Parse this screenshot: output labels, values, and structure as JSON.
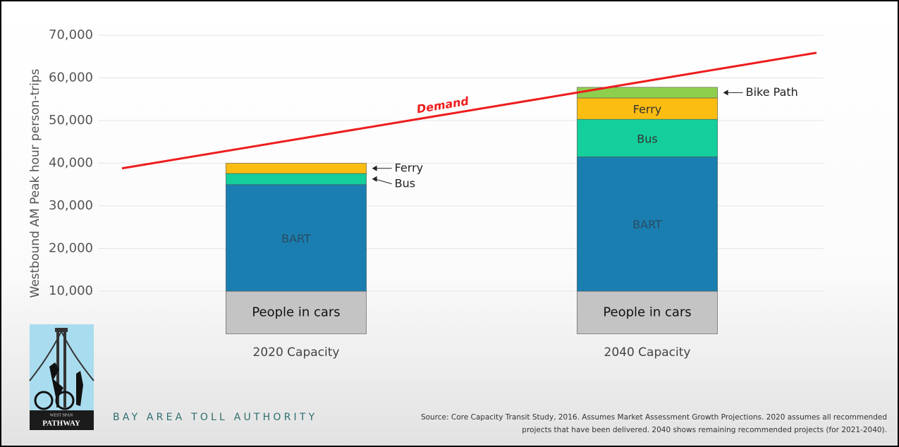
{
  "chart_data": {
    "type": "bar",
    "stacked": true,
    "y_label": "Westbound AM Peak hour person-trips",
    "categories": [
      "2020 Capacity",
      "2040 Capacity"
    ],
    "series": [
      {
        "name": "People in cars",
        "color": "#c4c4c4",
        "values": [
          10000,
          10000
        ]
      },
      {
        "name": "BART",
        "color": "#1a7fb0",
        "values": [
          25000,
          31500
        ]
      },
      {
        "name": "Bus",
        "color": "#14cf9b",
        "values": [
          2600,
          8800
        ]
      },
      {
        "name": "Ferry",
        "color": "#fbbd12",
        "values": [
          2400,
          5000
        ]
      },
      {
        "name": "Bike Path",
        "color": "#8fcf4e",
        "values": [
          null,
          2500
        ]
      }
    ],
    "line": {
      "name": "Demand",
      "color": "#ee1c1c",
      "values": [
        38800,
        65900
      ]
    },
    "ylim": [
      0,
      70000
    ],
    "yticks": [
      {
        "value": 10000,
        "label": "10,000"
      },
      {
        "value": 20000,
        "label": "20,000"
      },
      {
        "value": 30000,
        "label": "30,000"
      },
      {
        "value": 40000,
        "label": "40,000"
      },
      {
        "value": 50000,
        "label": "50,000"
      },
      {
        "value": 60000,
        "label": "60,000"
      },
      {
        "value": 70000,
        "label": "70,000"
      }
    ],
    "grid": true
  },
  "footer": {
    "organization": "BAY AREA TOLL AUTHORITY",
    "source": [
      "Source: Core Capacity Transit Study, 2016.  Assumes Market Assessment Growth Projections. 2020 assumes all recommended",
      "projects that have been delivered.  2040 shows remaining recommended projects (for 2021-2040)."
    ]
  },
  "logo": {
    "top": "WEST SPAN",
    "bottom": "PATHWAY"
  }
}
